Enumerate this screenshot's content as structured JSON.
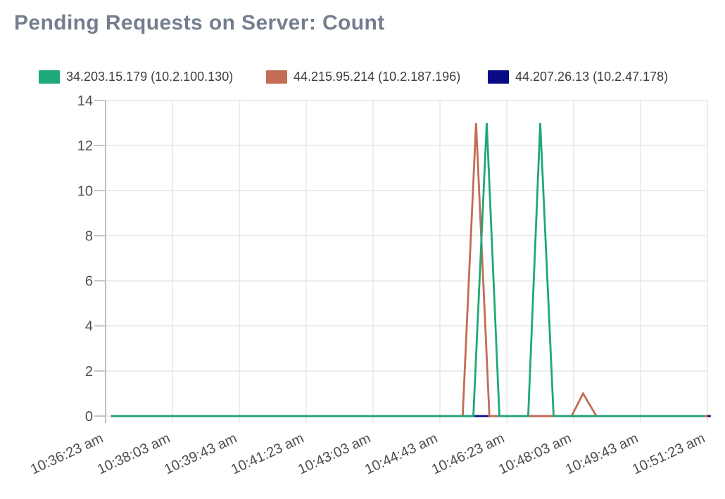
{
  "title": "Pending Requests on Server: Count",
  "title_color": "#747E8E",
  "palette": {
    "background": "#FFFFFF",
    "grid": "#E7E7E7",
    "axis": "#B9B9B9",
    "tick_text": "#4D4D4D",
    "legend_text": "#3D3D3D"
  },
  "chart_data": {
    "type": "line",
    "title": "Pending Requests on Server: Count",
    "xlabel": "",
    "ylabel": "",
    "grid": true,
    "legend_position": "top-left",
    "x_axis": {
      "tick_labels": [
        "10:36:23 am",
        "10:38:03 am",
        "10:39:43 am",
        "10:41:23 am",
        "10:43:03 am",
        "10:44:43 am",
        "10:46:23 am",
        "10:48:03 am",
        "10:49:43 am",
        "10:51:23 am"
      ],
      "tick_interval_seconds": 100,
      "label_rotation_deg": -25
    },
    "y_axis": {
      "ticks": [
        0,
        2,
        4,
        6,
        8,
        10,
        12,
        14
      ],
      "range": [
        0,
        14
      ]
    },
    "series": [
      {
        "name": "34.203.15.179 (10.2.100.130)",
        "color": "#1FA878",
        "points": [
          [
            "10:36:31",
            0
          ],
          [
            "10:45:33",
            0
          ],
          [
            "10:45:53",
            13
          ],
          [
            "10:46:12",
            0
          ],
          [
            "10:46:55",
            0
          ],
          [
            "10:47:13",
            13
          ],
          [
            "10:47:33",
            0
          ],
          [
            "10:51:18",
            0
          ]
        ]
      },
      {
        "name": "44.215.95.214 (10.2.187.196)",
        "color": "#C46C55",
        "points": [
          [
            "10:36:31",
            0
          ],
          [
            "10:45:17",
            0
          ],
          [
            "10:45:37",
            13
          ],
          [
            "10:45:57",
            0
          ],
          [
            "10:48:00",
            0
          ],
          [
            "10:48:17",
            1
          ],
          [
            "10:48:37",
            0
          ],
          [
            "10:51:23",
            0
          ]
        ]
      },
      {
        "name": "44.207.26.13 (10.2.47.178)",
        "color": "#0A0A87",
        "points": [
          [
            "10:36:31",
            0
          ],
          [
            "10:51:28",
            0
          ]
        ]
      }
    ],
    "draw_order": "first series drawn on top"
  }
}
